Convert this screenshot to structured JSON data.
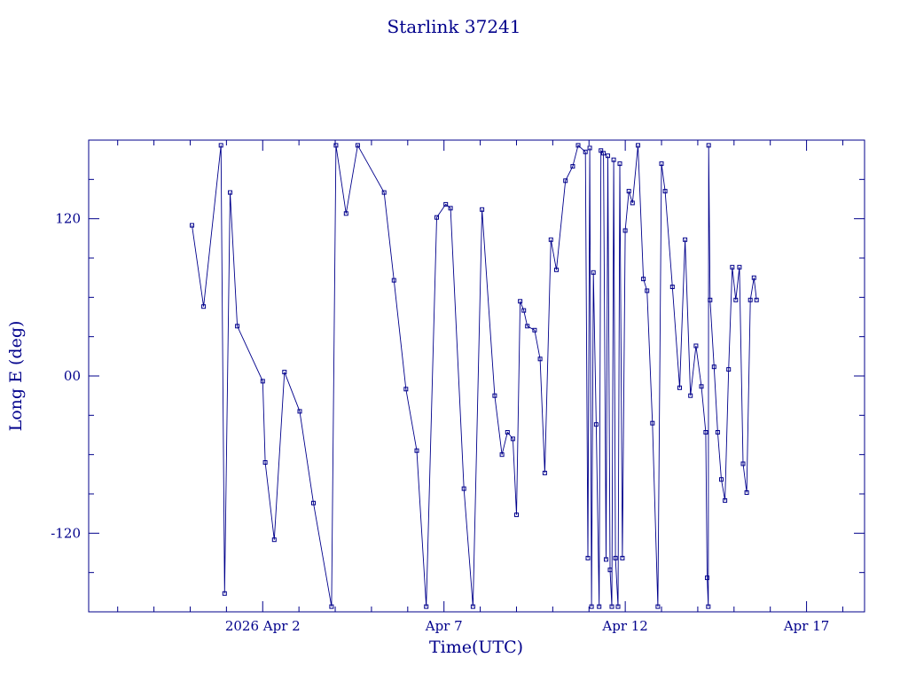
{
  "page": {
    "background": "#ffffff"
  },
  "chart_data": {
    "type": "line",
    "title": "Starlink 37241",
    "xlabel": "Time(UTC)",
    "ylabel": "Long E (deg)",
    "color": "#00008b",
    "marker": "open-square",
    "legend": "none",
    "grid": false,
    "xlim": [
      -2.8,
      18.6
    ],
    "ylim": [
      -180,
      180
    ],
    "x_encoding": "days, where 0 = 2026 Mar 31 (x tick 2 = 2026 Apr 2)",
    "xticks": [
      {
        "value": 2,
        "label": "2026 Apr 2"
      },
      {
        "value": 7,
        "label": "Apr 7"
      },
      {
        "value": 12,
        "label": "Apr 12"
      },
      {
        "value": 17,
        "label": "Apr 17"
      }
    ],
    "xminor_step": 1,
    "yticks": [
      {
        "value": 120,
        "label": "120"
      },
      {
        "value": 0,
        "label": "00"
      },
      {
        "value": -120,
        "label": "-120"
      }
    ],
    "yminor_step": 30,
    "points": [
      [
        0.05,
        115
      ],
      [
        0.37,
        53
      ],
      [
        0.85,
        176
      ],
      [
        0.95,
        -166
      ],
      [
        1.1,
        140
      ],
      [
        1.3,
        38
      ],
      [
        2.0,
        -4
      ],
      [
        2.07,
        -66
      ],
      [
        2.32,
        -125
      ],
      [
        2.6,
        3
      ],
      [
        3.02,
        -27
      ],
      [
        3.4,
        -97
      ],
      [
        3.9,
        -176
      ],
      [
        4.02,
        176
      ],
      [
        4.3,
        124
      ],
      [
        4.62,
        176
      ],
      [
        5.35,
        140
      ],
      [
        5.62,
        73
      ],
      [
        5.95,
        -10
      ],
      [
        6.25,
        -57
      ],
      [
        6.51,
        -176
      ],
      [
        6.8,
        121
      ],
      [
        7.05,
        131
      ],
      [
        7.18,
        128
      ],
      [
        7.55,
        -86
      ],
      [
        7.8,
        -176
      ],
      [
        8.05,
        127
      ],
      [
        8.4,
        -15
      ],
      [
        8.6,
        -60
      ],
      [
        8.75,
        -43
      ],
      [
        8.9,
        -48
      ],
      [
        9.0,
        -106
      ],
      [
        9.1,
        57
      ],
      [
        9.2,
        50
      ],
      [
        9.3,
        38
      ],
      [
        9.5,
        35
      ],
      [
        9.65,
        13
      ],
      [
        9.78,
        -74
      ],
      [
        9.95,
        104
      ],
      [
        10.1,
        81
      ],
      [
        10.35,
        149
      ],
      [
        10.55,
        160
      ],
      [
        10.7,
        176
      ],
      [
        10.9,
        171
      ],
      [
        10.97,
        -139
      ],
      [
        11.02,
        174
      ],
      [
        11.07,
        -176
      ],
      [
        11.12,
        79
      ],
      [
        11.2,
        -37
      ],
      [
        11.28,
        -176
      ],
      [
        11.33,
        172
      ],
      [
        11.4,
        170
      ],
      [
        11.47,
        -140
      ],
      [
        11.52,
        168
      ],
      [
        11.58,
        -148
      ],
      [
        11.63,
        -176
      ],
      [
        11.68,
        165
      ],
      [
        11.73,
        -139
      ],
      [
        11.8,
        -176
      ],
      [
        11.85,
        162
      ],
      [
        11.92,
        -139
      ],
      [
        12.0,
        111
      ],
      [
        12.1,
        141
      ],
      [
        12.2,
        132
      ],
      [
        12.35,
        176
      ],
      [
        12.5,
        74
      ],
      [
        12.6,
        65
      ],
      [
        12.75,
        -36
      ],
      [
        12.9,
        -176
      ],
      [
        13.0,
        162
      ],
      [
        13.1,
        141
      ],
      [
        13.3,
        68
      ],
      [
        13.5,
        -9
      ],
      [
        13.65,
        104
      ],
      [
        13.8,
        -15
      ],
      [
        13.95,
        23
      ],
      [
        14.1,
        -8
      ],
      [
        14.22,
        -43
      ],
      [
        14.26,
        -154
      ],
      [
        14.29,
        -176
      ],
      [
        14.3,
        176
      ],
      [
        14.34,
        58
      ],
      [
        14.45,
        7
      ],
      [
        14.55,
        -43
      ],
      [
        14.65,
        -79
      ],
      [
        14.75,
        -95
      ],
      [
        14.85,
        5
      ],
      [
        14.95,
        83
      ],
      [
        15.05,
        58
      ],
      [
        15.15,
        83
      ],
      [
        15.25,
        -67
      ],
      [
        15.35,
        -89
      ],
      [
        15.45,
        58
      ],
      [
        15.55,
        75
      ],
      [
        15.62,
        58
      ]
    ]
  }
}
